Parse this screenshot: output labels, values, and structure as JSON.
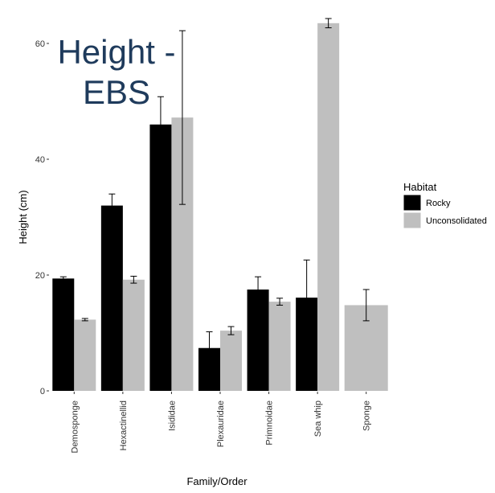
{
  "chart_data": {
    "type": "bar",
    "title_lines": [
      "Height -",
      "EBS"
    ],
    "xlabel": "Family/Order",
    "ylabel": "Height (cm)",
    "ylim": [
      0,
      64
    ],
    "yticks": [
      0,
      20,
      40,
      60
    ],
    "grid": false,
    "legend": {
      "title": "Habitat",
      "position": "right"
    },
    "categories": [
      "Demosponge",
      "Hexactinellid",
      "Isididae",
      "Plexauridae",
      "Primnoidae",
      "Sea whip",
      "Sponge"
    ],
    "series": [
      {
        "name": "Rocky",
        "color": "#000000",
        "values": [
          19.4,
          32.0,
          46.0,
          7.4,
          17.5,
          16.1,
          null
        ],
        "error": [
          0.3,
          2.0,
          4.8,
          2.8,
          2.2,
          6.5,
          null
        ]
      },
      {
        "name": "Unconsolidated",
        "color": "#bfbfbf",
        "values": [
          12.3,
          19.2,
          47.2,
          10.4,
          15.4,
          63.5,
          14.8
        ],
        "error": [
          0.2,
          0.6,
          15.0,
          0.7,
          0.6,
          0.8,
          2.7
        ]
      }
    ]
  }
}
